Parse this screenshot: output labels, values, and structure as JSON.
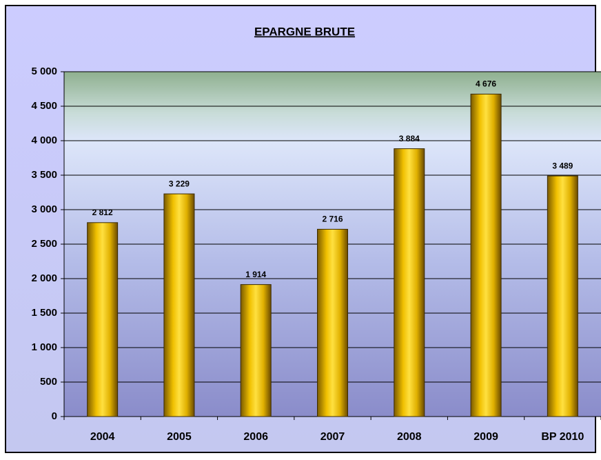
{
  "chart_data": {
    "type": "bar",
    "title": "EPARGNE BRUTE",
    "categories": [
      "2004",
      "2005",
      "2006",
      "2007",
      "2008",
      "2009",
      "BP 2010"
    ],
    "values": [
      2812,
      3229,
      1914,
      2716,
      3884,
      4676,
      3489
    ],
    "value_labels": [
      "2 812",
      "3 229",
      "1 914",
      "2 716",
      "3 884",
      "4 676",
      "3 489"
    ],
    "color": "#f2c200",
    "ylim": [
      0,
      5000
    ],
    "yticks": [
      0,
      500,
      {
        "value": 1000,
        "label": "1 000"
      },
      {
        "value": 1500,
        "label": "1 500"
      },
      {
        "value": 2000,
        "label": "2 000"
      },
      {
        "value": 2500,
        "label": "2 500"
      },
      {
        "value": 3000,
        "label": "3 000"
      },
      {
        "value": 3500,
        "label": "3 500"
      },
      {
        "value": 4000,
        "label": "4 000"
      },
      {
        "value": 4500,
        "label": "4 500"
      },
      {
        "value": 5000,
        "label": "5 000"
      }
    ],
    "grid": true
  }
}
